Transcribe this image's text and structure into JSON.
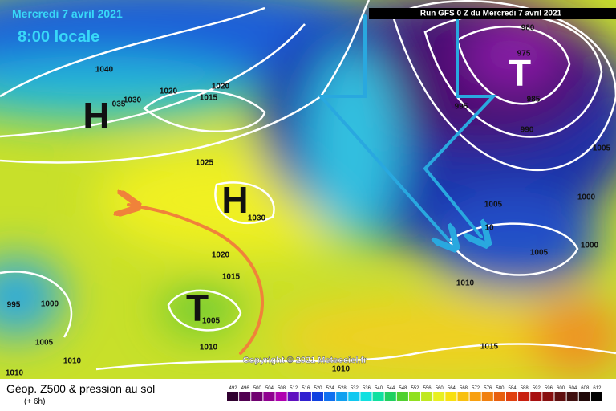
{
  "header": {
    "date": "Mercredi 7 avril 2021",
    "time": "8:00 locale",
    "run": "Run GFS 0 Z du Mercredi 7 avril 2021"
  },
  "copyright": "Copyright © 2021 Meteociel.fr",
  "footer": {
    "title": "Géop. Z500 & pression au sol",
    "step": "(+ 6h)"
  },
  "systems": [
    "H",
    "H",
    "T",
    "T"
  ],
  "isobar_labels": [
    "1040",
    "035",
    "1030",
    "1020",
    "1020",
    "1015",
    "1025",
    "1030",
    "1020",
    "1015",
    "1005",
    "1010",
    "995",
    "1000",
    "1005",
    "1010",
    "1010",
    "980",
    "975",
    "985",
    "995",
    "990",
    "1005",
    "1000",
    "1005",
    "10",
    "1000",
    "1005",
    "1010",
    "1015",
    "1010"
  ],
  "scale": [
    "492",
    "496",
    "500",
    "504",
    "508",
    "512",
    "516",
    "520",
    "524",
    "528",
    "532",
    "536",
    "540",
    "544",
    "548",
    "552",
    "556",
    "560",
    "564",
    "568",
    "572",
    "576",
    "580",
    "584",
    "588",
    "592",
    "596",
    "600",
    "604",
    "608",
    "612"
  ]
}
